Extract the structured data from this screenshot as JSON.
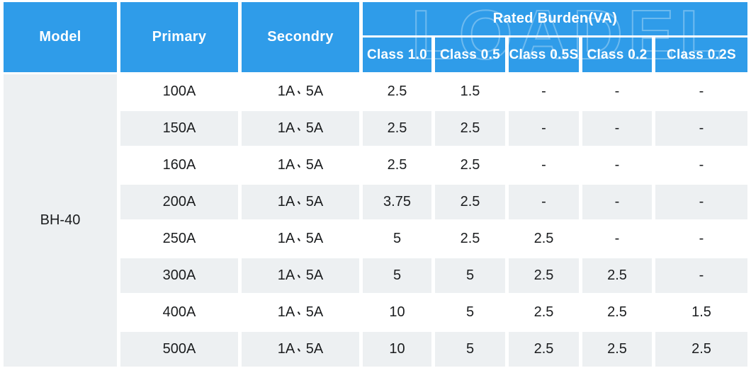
{
  "table": {
    "headers": {
      "model": "Model",
      "primary": "Primary",
      "secondary": "Secondry",
      "rated_burden": "Rated Burden(VA)",
      "classes": [
        "Class 1.0",
        "Class 0.5",
        "Class 0.5S",
        "Class 0.2",
        "Class 0.2S"
      ]
    },
    "model_value": "BH-40",
    "rows": [
      {
        "primary": "100A",
        "secondary": "1A、5A",
        "burdens": [
          "2.5",
          "1.5",
          "-",
          "-",
          "-"
        ]
      },
      {
        "primary": "150A",
        "secondary": "1A、5A",
        "burdens": [
          "2.5",
          "2.5",
          "-",
          "-",
          "-"
        ]
      },
      {
        "primary": "160A",
        "secondary": "1A、5A",
        "burdens": [
          "2.5",
          "2.5",
          "-",
          "-",
          "-"
        ]
      },
      {
        "primary": "200A",
        "secondary": "1A、5A",
        "burdens": [
          "3.75",
          "2.5",
          "-",
          "-",
          "-"
        ]
      },
      {
        "primary": "250A",
        "secondary": "1A、5A",
        "burdens": [
          "5",
          "2.5",
          "2.5",
          "-",
          "-"
        ]
      },
      {
        "primary": "300A",
        "secondary": "1A、5A",
        "burdens": [
          "5",
          "5",
          "2.5",
          "2.5",
          "-"
        ]
      },
      {
        "primary": "400A",
        "secondary": "1A、5A",
        "burdens": [
          "10",
          "5",
          "2.5",
          "2.5",
          "1.5"
        ]
      },
      {
        "primary": "500A",
        "secondary": "1A、5A",
        "burdens": [
          "10",
          "5",
          "2.5",
          "2.5",
          "2.5"
        ]
      }
    ]
  },
  "watermark": {
    "text": "LOADEL"
  },
  "colors": {
    "header_blue": "#2F9CE9",
    "stripe_gray": "#EDF0F2",
    "text_dark": "#1B1D1F"
  }
}
